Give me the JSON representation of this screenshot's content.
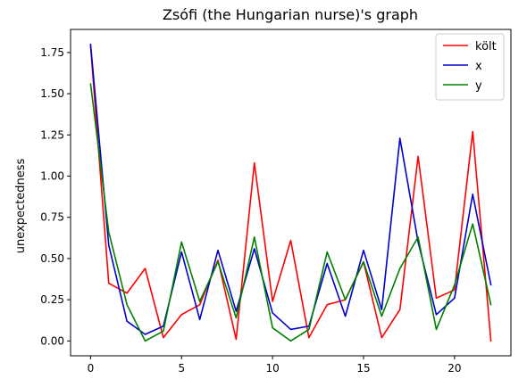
{
  "chart_data": {
    "type": "line",
    "title": "Zsófi (the Hungarian nurse)'s graph",
    "xlabel": "",
    "ylabel": "unexpectedness",
    "xlim": [
      -1.1,
      23.1
    ],
    "ylim": [
      -0.09,
      1.89
    ],
    "x_ticks": [
      0,
      5,
      10,
      15,
      20
    ],
    "y_ticks": [
      0.0,
      0.25,
      0.5,
      0.75,
      1.0,
      1.25,
      1.5,
      1.75
    ],
    "y_tick_labels": [
      "0.00",
      "0.25",
      "0.50",
      "0.75",
      "1.00",
      "1.25",
      "1.50",
      "1.75"
    ],
    "grid": false,
    "legend_position": "top-right",
    "x": [
      0,
      1,
      2,
      3,
      4,
      5,
      6,
      7,
      8,
      9,
      10,
      11,
      12,
      13,
      14,
      15,
      16,
      17,
      18,
      19,
      20,
      21,
      22
    ],
    "series": [
      {
        "name": "költ",
        "color": "#ff0000",
        "values": [
          1.79,
          0.35,
          0.29,
          0.44,
          0.02,
          0.16,
          0.22,
          0.49,
          0.01,
          1.08,
          0.24,
          0.61,
          0.02,
          0.22,
          0.25,
          0.48,
          0.02,
          0.19,
          1.12,
          0.26,
          0.31,
          1.27,
          0.0
        ]
      },
      {
        "name": "x",
        "color": "#0000cc",
        "values": [
          1.8,
          0.58,
          0.12,
          0.04,
          0.09,
          0.54,
          0.13,
          0.55,
          0.18,
          0.56,
          0.17,
          0.07,
          0.09,
          0.47,
          0.15,
          0.55,
          0.19,
          1.23,
          0.6,
          0.16,
          0.26,
          0.89,
          0.34
        ]
      },
      {
        "name": "y",
        "color": "#008000",
        "values": [
          1.56,
          0.66,
          0.22,
          0.0,
          0.06,
          0.6,
          0.24,
          0.48,
          0.14,
          0.63,
          0.08,
          0.0,
          0.07,
          0.54,
          0.25,
          0.48,
          0.15,
          0.44,
          0.63,
          0.07,
          0.34,
          0.71,
          0.22
        ]
      }
    ]
  }
}
